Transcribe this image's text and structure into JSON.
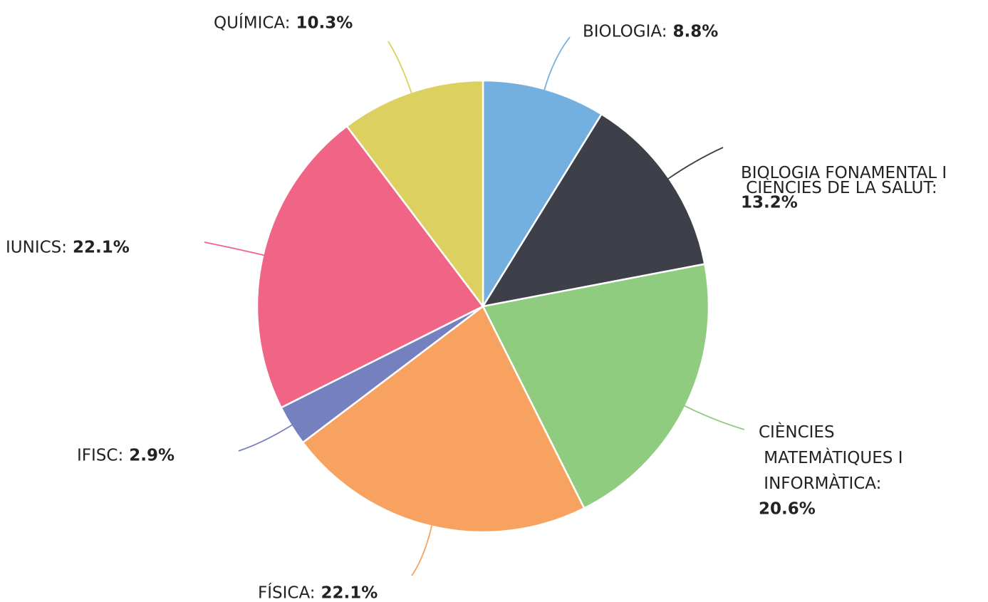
{
  "chart_data": {
    "type": "pie",
    "categories": [
      "BIOLOGIA:",
      "BIOLOGIA FONAMENTAL I CIÈNCIES DE LA SALUT:",
      "CIÈNCIES MATEMÀTIQUES I INFORMÀTICA:",
      "FÍSICA:",
      "IFISC:",
      "IUNICS:",
      "QUÍMICA:"
    ],
    "values": [
      8.8,
      13.2,
      20.6,
      22.1,
      2.9,
      22.1,
      10.3
    ],
    "value_labels": [
      "8.8%",
      "13.2%",
      "20.6%",
      "22.1%",
      "2.9%",
      "22.1%",
      "10.3%"
    ],
    "colors": [
      "#74b0df",
      "#3d4049",
      "#90cc80",
      "#f8a262",
      "#7580bf",
      "#f06586",
      "#dcd060"
    ]
  }
}
